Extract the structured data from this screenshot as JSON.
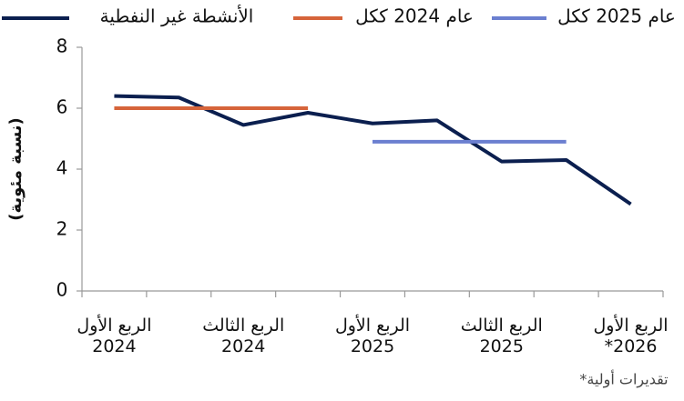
{
  "chart_data": {
    "type": "line",
    "y_label": "(نسبة مئوية)",
    "footnote": "تقديرات أولية*",
    "categories": [
      "الربع الأول\n2024",
      null,
      "الربع الثالث\n2024",
      null,
      "الربع الأول\n2025",
      null,
      "الربع الثالث\n2025",
      null,
      "الربع الأول\n2026*"
    ],
    "series": [
      {
        "name": "الأنشطة غير النفطية",
        "color": "#0b1f4f",
        "values": [
          6.4,
          6.35,
          5.45,
          5.85,
          5.5,
          5.6,
          4.25,
          4.3,
          2.85
        ]
      },
      {
        "name": "عام 2024 ككل",
        "color": "#d6643a",
        "values": [
          6.0,
          6.0,
          6.0,
          6.0,
          null,
          null,
          null,
          null,
          null
        ]
      },
      {
        "name": "عام 2025 ككل",
        "color": "#6b7fd0",
        "values": [
          null,
          null,
          null,
          null,
          4.9,
          4.9,
          4.9,
          4.9,
          null
        ]
      }
    ],
    "ylim": [
      0,
      8
    ],
    "yticks": [
      0,
      2,
      4,
      6,
      8
    ]
  }
}
